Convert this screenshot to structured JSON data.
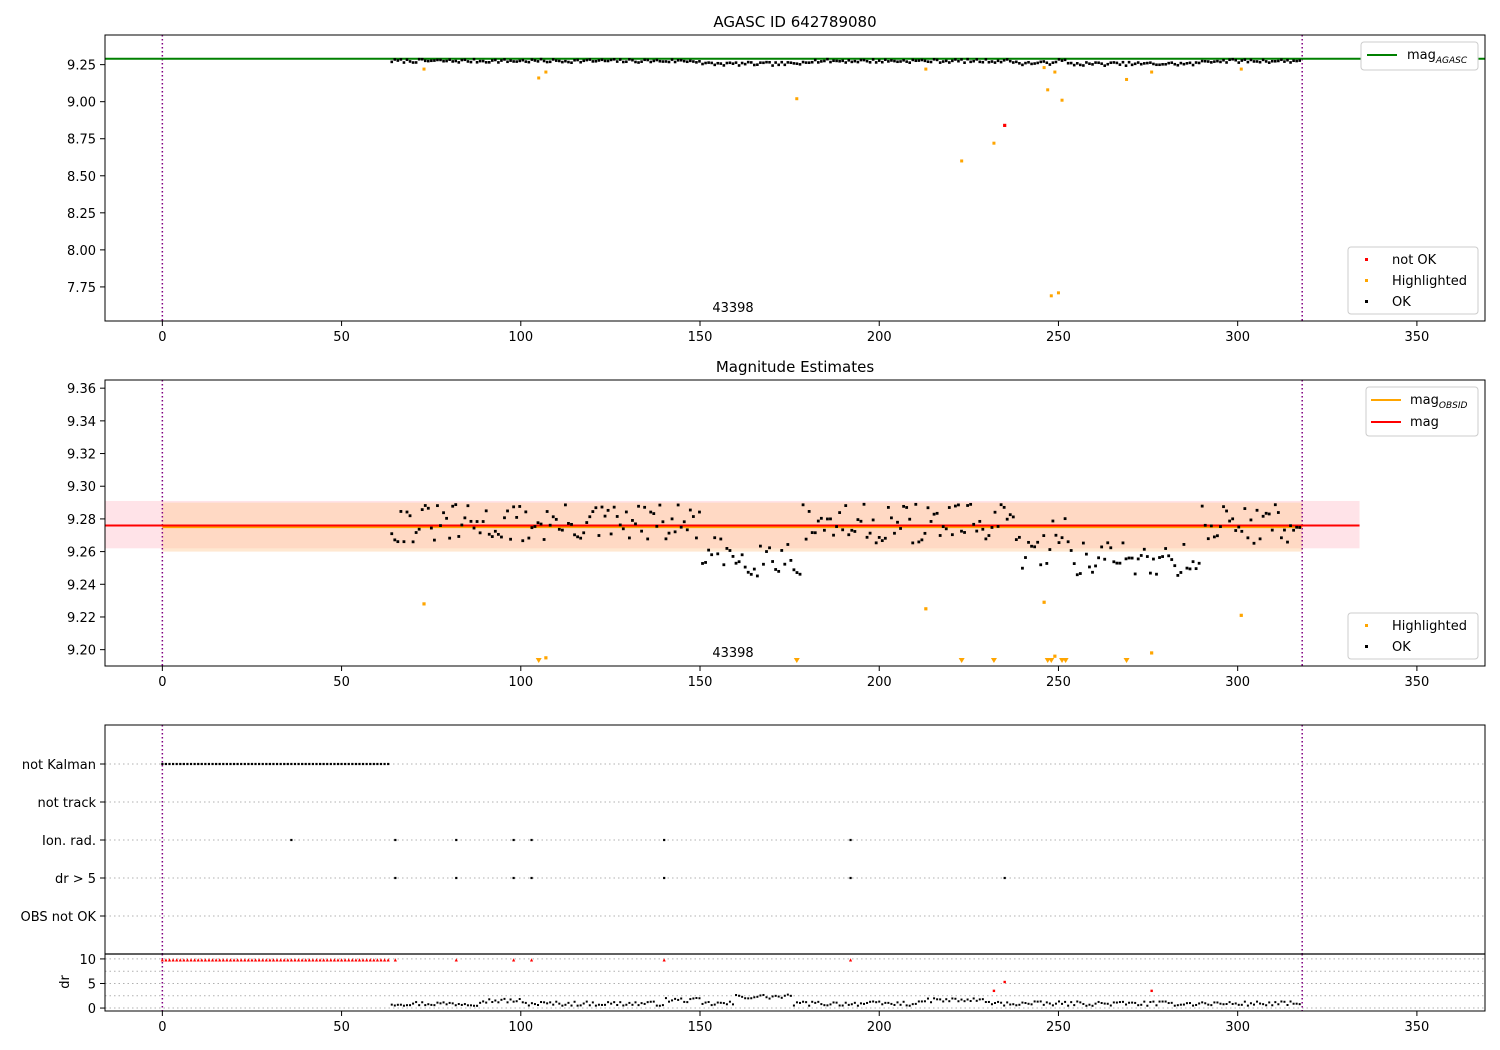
{
  "colors": {
    "ok": "#000000",
    "not_ok": "#ff0000",
    "highlighted": "#ffa500",
    "mag_agasc_line": "#008000",
    "mag_line": "#ff0000",
    "mag_obsid_line": "#ffa500",
    "band_mag": "#ffc0cb",
    "band_obsid": "#ffcc99",
    "boundary": "#800080",
    "grid": "#b0b0b0"
  },
  "chart_data": [
    {
      "type": "scatter",
      "title": "AGASC ID 642789080",
      "annotation": "43398",
      "xlim": [
        -16,
        369
      ],
      "ylim": [
        7.52,
        9.45
      ],
      "xticks": [
        0,
        50,
        100,
        150,
        200,
        250,
        300,
        350
      ],
      "yticks": [
        "7.75",
        "8.00",
        "8.25",
        "8.50",
        "8.75",
        "9.00",
        "9.25"
      ],
      "boundaries": [
        0,
        318
      ],
      "hline_mag_agasc": 9.29,
      "legend_lines": [
        {
          "label": "mag",
          "sub": "AGASC"
        }
      ],
      "legend_points": [
        "not OK",
        "Highlighted",
        "OK"
      ],
      "ok_baseline": {
        "x_start": 64,
        "x_end": 318,
        "y_level": 9.275,
        "scatter": 0.012
      },
      "dip_segments": [
        {
          "x": [
            150,
            178
          ],
          "y": 9.255
        },
        {
          "x": [
            238,
            248
          ],
          "y": 9.26
        },
        {
          "x": [
            252,
            290
          ],
          "y": 9.255
        }
      ],
      "not_ok_points": [
        {
          "x": 235,
          "y": 8.84
        }
      ],
      "highlighted_points": [
        {
          "x": 73,
          "y": 9.22
        },
        {
          "x": 105,
          "y": 9.16
        },
        {
          "x": 107,
          "y": 9.2
        },
        {
          "x": 177,
          "y": 9.02
        },
        {
          "x": 213,
          "y": 9.22
        },
        {
          "x": 223,
          "y": 8.6
        },
        {
          "x": 232,
          "y": 8.72
        },
        {
          "x": 246,
          "y": 9.23
        },
        {
          "x": 247,
          "y": 9.08
        },
        {
          "x": 248,
          "y": 7.69
        },
        {
          "x": 249,
          "y": 9.2
        },
        {
          "x": 250,
          "y": 7.71
        },
        {
          "x": 251,
          "y": 9.01
        },
        {
          "x": 269,
          "y": 9.15
        },
        {
          "x": 276,
          "y": 9.2
        },
        {
          "x": 301,
          "y": 9.22
        }
      ]
    },
    {
      "type": "scatter",
      "title": "Magnitude Estimates",
      "annotation": "43398",
      "xlim": [
        -16,
        369
      ],
      "ylim": [
        9.19,
        9.365
      ],
      "xticks": [
        0,
        50,
        100,
        150,
        200,
        250,
        300,
        350
      ],
      "yticks": [
        "9.20",
        "9.22",
        "9.24",
        "9.26",
        "9.28",
        "9.30",
        "9.32",
        "9.34",
        "9.36"
      ],
      "boundaries": [
        0,
        318
      ],
      "mag": 9.276,
      "mag_band": [
        9.262,
        9.291
      ],
      "mag_band_x": [
        -16,
        334
      ],
      "mag_obsid": 9.275,
      "mag_obsid_band": [
        9.26,
        9.29
      ],
      "mag_obsid_band_x": [
        0,
        318
      ],
      "legend_lines": [
        {
          "label": "mag",
          "sub": "OBSID"
        },
        {
          "label": "mag",
          "sub": ""
        }
      ],
      "legend_points": [
        "Highlighted",
        "OK"
      ],
      "ok_baseline": {
        "x_start": 64,
        "x_end": 318,
        "y_level": 9.277,
        "scatter": 0.012
      },
      "dip_segments": [
        {
          "x": [
            150,
            178
          ],
          "y": 9.257
        },
        {
          "x": [
            238,
            248
          ],
          "y": 9.26
        },
        {
          "x": [
            252,
            290
          ],
          "y": 9.256
        }
      ],
      "highlighted_points": [
        {
          "x": 73,
          "y": 9.228
        },
        {
          "x": 107,
          "y": 9.195
        },
        {
          "x": 213,
          "y": 9.225
        },
        {
          "x": 246,
          "y": 9.229
        },
        {
          "x": 249,
          "y": 9.196
        },
        {
          "x": 276,
          "y": 9.198
        },
        {
          "x": 301,
          "y": 9.221
        }
      ],
      "highlighted_off_scale_x": [
        105,
        177,
        223,
        232,
        247,
        248,
        251,
        252,
        269
      ]
    },
    {
      "type": "scatter",
      "title": "",
      "xlim": [
        -16,
        369
      ],
      "categories": [
        "not Kalman",
        "not track",
        "Ion. rad.",
        "dr > 5",
        "OBS not OK"
      ],
      "boundaries": [
        0,
        318
      ],
      "not_kalman_x_range": [
        0,
        63
      ],
      "ion_rad_x": [
        36,
        65,
        82,
        98,
        103,
        140,
        192
      ],
      "dr_gt_5_x": [
        65,
        82,
        98,
        103,
        140,
        192,
        235
      ]
    },
    {
      "type": "scatter",
      "title": "",
      "ylabel": "dr",
      "xlim": [
        -16,
        369
      ],
      "ylim": [
        -0.6,
        11
      ],
      "xticks": [
        0,
        50,
        100,
        150,
        200,
        250,
        300,
        350
      ],
      "yticks": [
        "0",
        "5",
        "10"
      ],
      "boundaries": [
        0,
        318
      ],
      "capped_x_range": [
        0,
        63
      ],
      "capped_extra_x": [
        65,
        82,
        98,
        103,
        140,
        192
      ],
      "cap_value": 9.8,
      "ok_range": [
        64,
        318
      ],
      "red_points": [
        {
          "x": 232,
          "y": 3.5
        },
        {
          "x": 235,
          "y": 5.3
        },
        {
          "x": 276,
          "y": 3.5
        }
      ]
    }
  ]
}
